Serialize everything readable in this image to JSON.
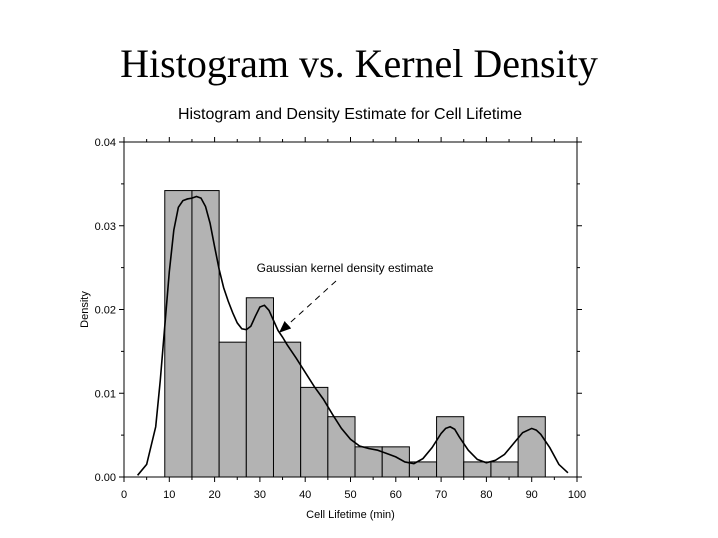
{
  "slide": {
    "title": "Histogram vs. Kernel Density"
  },
  "chart_data": {
    "type": "bar",
    "title": "Histogram and Density Estimate for Cell Lifetime",
    "xlabel": "Cell Lifetime (min)",
    "ylabel": "Density",
    "xlim": [
      0,
      100
    ],
    "ylim": [
      0,
      0.04
    ],
    "xticks": [
      "0",
      "10",
      "20",
      "30",
      "40",
      "50",
      "60",
      "70",
      "80",
      "90",
      "100"
    ],
    "yticks": [
      "0.00",
      "0.01",
      "0.02",
      "0.03",
      "0.04"
    ],
    "bins": [
      {
        "x0": 9,
        "x1": 15,
        "value": 0.0342
      },
      {
        "x0": 15,
        "x1": 21,
        "value": 0.0342
      },
      {
        "x0": 21,
        "x1": 27,
        "value": 0.0161
      },
      {
        "x0": 27,
        "x1": 33,
        "value": 0.0214
      },
      {
        "x0": 33,
        "x1": 39,
        "value": 0.0161
      },
      {
        "x0": 39,
        "x1": 45,
        "value": 0.0107
      },
      {
        "x0": 45,
        "x1": 51,
        "value": 0.0072
      },
      {
        "x0": 51,
        "x1": 57,
        "value": 0.0036
      },
      {
        "x0": 57,
        "x1": 63,
        "value": 0.0036
      },
      {
        "x0": 63,
        "x1": 69,
        "value": 0.0018
      },
      {
        "x0": 69,
        "x1": 75,
        "value": 0.0072
      },
      {
        "x0": 75,
        "x1": 81,
        "value": 0.0018
      },
      {
        "x0": 81,
        "x1": 87,
        "value": 0.0018
      },
      {
        "x0": 87,
        "x1": 93,
        "value": 0.0072
      }
    ],
    "density_curve": {
      "x": [
        3,
        5,
        7,
        8,
        9,
        10,
        11,
        12,
        13,
        14,
        15,
        16,
        17,
        18,
        19,
        20,
        21,
        22,
        23,
        24,
        25,
        26,
        27,
        28,
        29,
        30,
        31,
        32,
        33,
        34,
        35,
        36,
        38,
        40,
        42,
        44,
        46,
        48,
        50,
        52,
        54,
        56,
        58,
        60,
        62,
        64,
        66,
        68,
        70,
        71,
        72,
        73,
        74,
        76,
        78,
        80,
        82,
        84,
        86,
        88,
        90,
        91,
        92,
        94,
        96,
        98
      ],
      "y": [
        0.0002,
        0.0015,
        0.006,
        0.0115,
        0.018,
        0.0245,
        0.0295,
        0.0322,
        0.033,
        0.0332,
        0.0333,
        0.0335,
        0.0333,
        0.0323,
        0.0303,
        0.0275,
        0.0248,
        0.0226,
        0.021,
        0.0196,
        0.0184,
        0.0177,
        0.0176,
        0.018,
        0.0192,
        0.0203,
        0.0205,
        0.0199,
        0.0187,
        0.0175,
        0.0167,
        0.0158,
        0.0142,
        0.0125,
        0.0108,
        0.0093,
        0.0075,
        0.0058,
        0.0045,
        0.0037,
        0.0034,
        0.0032,
        0.0028,
        0.0024,
        0.0018,
        0.0016,
        0.0022,
        0.0035,
        0.0052,
        0.0058,
        0.006,
        0.0057,
        0.0048,
        0.0032,
        0.0021,
        0.0017,
        0.002,
        0.0027,
        0.004,
        0.0053,
        0.0058,
        0.0056,
        0.0051,
        0.0035,
        0.0015,
        0.0005
      ]
    },
    "annotation": {
      "text": "Gaussian kernel density estimate",
      "point_x": 35,
      "point_y": 0.0175
    }
  }
}
